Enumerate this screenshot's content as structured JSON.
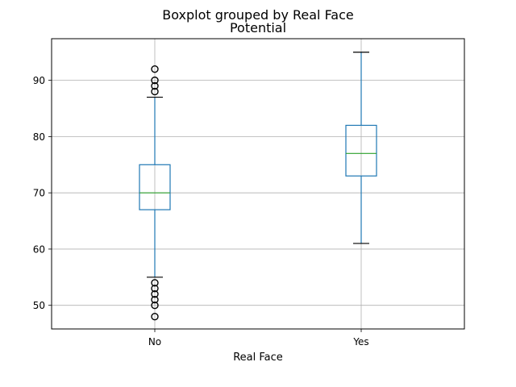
{
  "chart_data": {
    "type": "box",
    "title": "Boxplot grouped by Real Face",
    "subtitle": "Potential",
    "xlabel": "Real Face",
    "ylabel": "",
    "categories": [
      "No",
      "Yes"
    ],
    "ylim": [
      45.8,
      97.4
    ],
    "yticks": [
      50,
      60,
      70,
      80,
      90
    ],
    "grid": true,
    "boxes": [
      {
        "category": "No",
        "whisker_low": 55,
        "q1": 67,
        "median": 70,
        "q3": 75,
        "whisker_high": 87,
        "outliers": [
          48,
          50,
          51,
          52,
          53,
          54,
          88,
          89,
          90,
          92
        ]
      },
      {
        "category": "Yes",
        "whisker_low": 61,
        "q1": 73,
        "median": 77,
        "q3": 82,
        "whisker_high": 95,
        "outliers": []
      }
    ],
    "colors": {
      "box": "#1f77b4",
      "median": "#2ca02c",
      "whisker": "#1f77b4",
      "cap": "#000000",
      "flier": "#000000",
      "grid": "#b0b0b0",
      "axes": "#000000"
    }
  }
}
